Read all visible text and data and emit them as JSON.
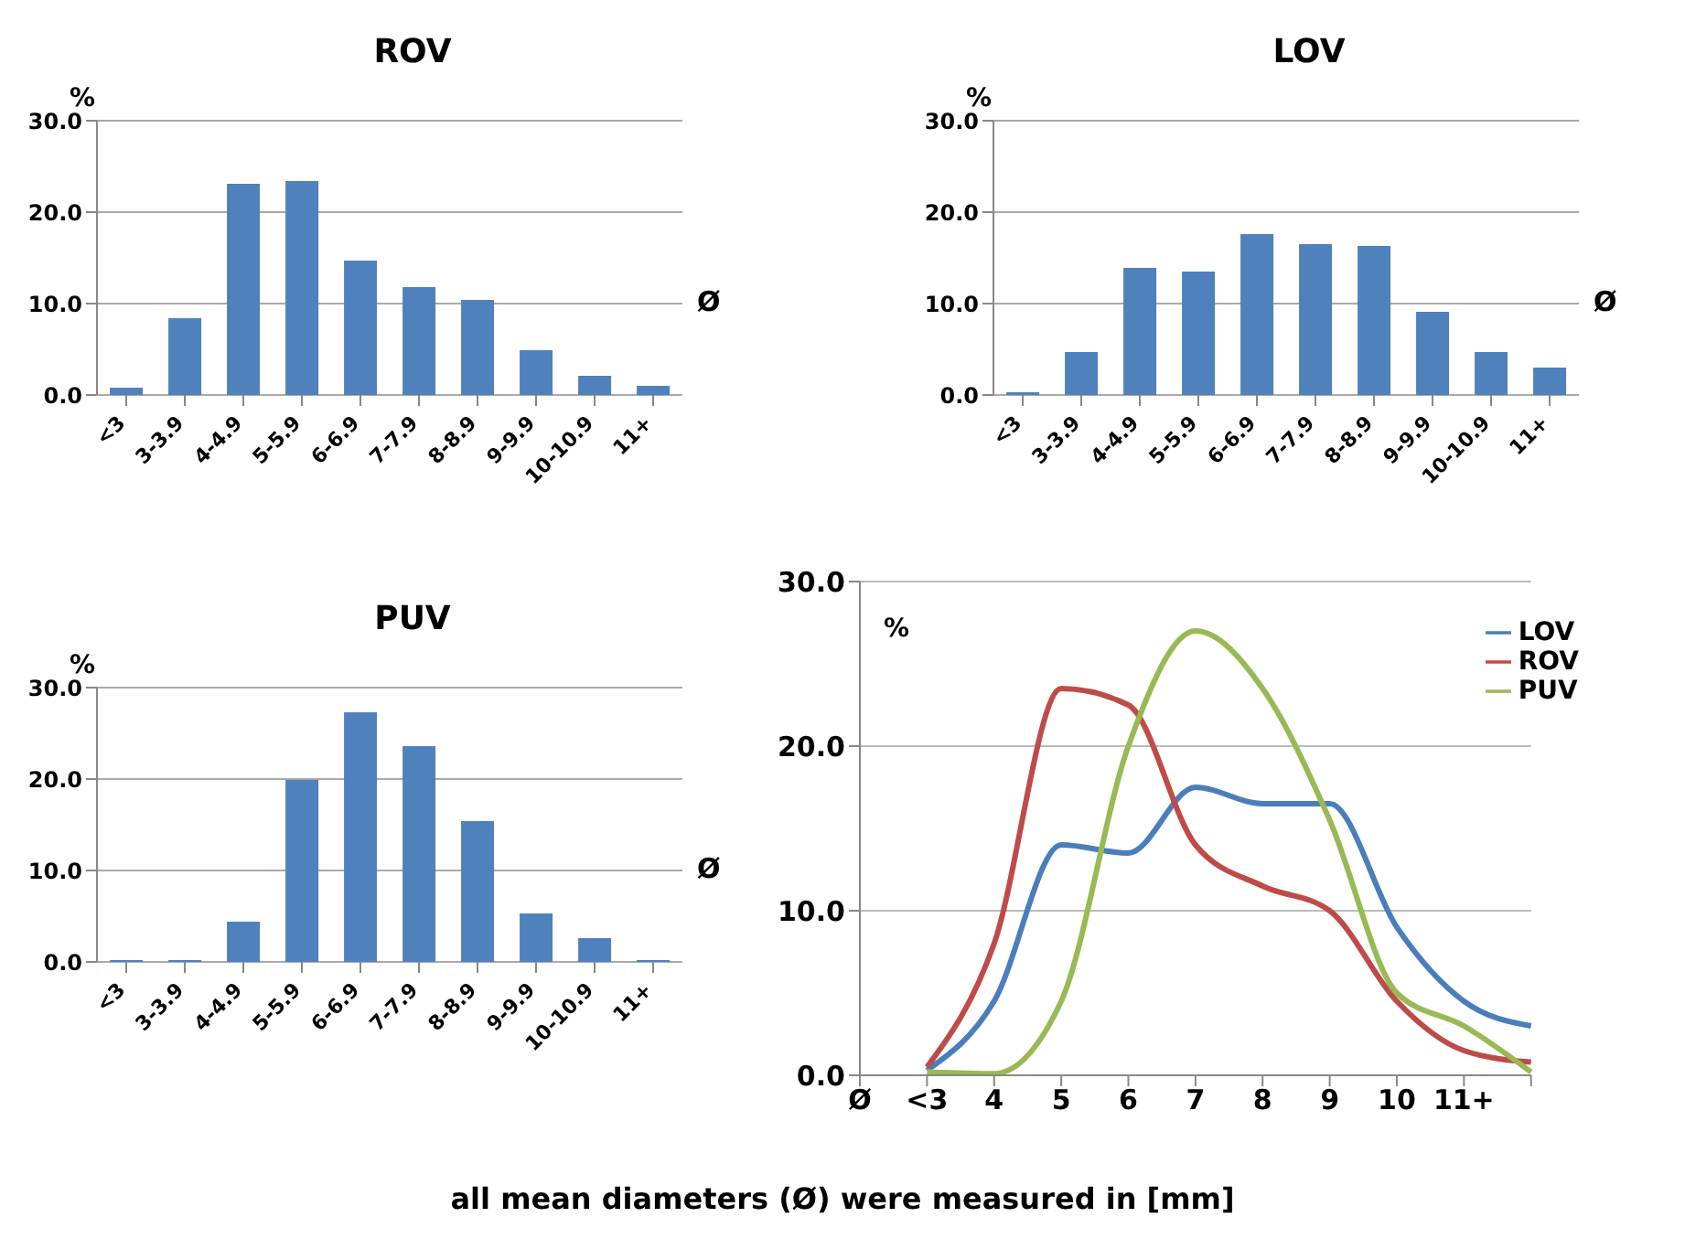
{
  "chart_data": [
    {
      "type": "bar",
      "title": "ROV",
      "ylabel": "%",
      "xlabel": "Ø",
      "categories": [
        "<3",
        "3-3.9",
        "4-4.9",
        "5-5.9",
        "6-6.9",
        "7-7.9",
        "8-8.9",
        "9-9.9",
        "10-10.9",
        "11+"
      ],
      "values": [
        0.8,
        8.4,
        23.1,
        23.4,
        14.7,
        11.8,
        10.4,
        4.9,
        2.1,
        1.0
      ],
      "color": "#4f81bd",
      "ylim": [
        0,
        30
      ],
      "yticks": [
        {
          "value": 0,
          "label": "0.0"
        },
        {
          "value": 10,
          "label": "10.0"
        },
        {
          "value": 20,
          "label": "20.0"
        },
        {
          "value": 30,
          "label": "30.0"
        }
      ],
      "grid": "y"
    },
    {
      "type": "bar",
      "title": "LOV",
      "ylabel": "%",
      "xlabel": "Ø",
      "categories": [
        "<3",
        "3-3.9",
        "4-4.9",
        "5-5.9",
        "6-6.9",
        "7-7.9",
        "8-8.9",
        "9-9.9",
        "10-10.9",
        "11+"
      ],
      "values": [
        0.3,
        4.7,
        13.9,
        13.5,
        17.6,
        16.5,
        16.3,
        9.1,
        4.7,
        3.0
      ],
      "color": "#4f81bd",
      "ylim": [
        0,
        30
      ],
      "yticks": [
        {
          "value": 0,
          "label": "0.0"
        },
        {
          "value": 10,
          "label": "10.0"
        },
        {
          "value": 20,
          "label": "20.0"
        },
        {
          "value": 30,
          "label": "30.0"
        }
      ],
      "grid": "y"
    },
    {
      "type": "bar",
      "title": "PUV",
      "ylabel": "%",
      "xlabel": "Ø",
      "categories": [
        "<3",
        "3-3.9",
        "4-4.9",
        "5-5.9",
        "6-6.9",
        "7-7.9",
        "8-8.9",
        "9-9.9",
        "10-10.9",
        "11+"
      ],
      "values": [
        0.2,
        0.2,
        4.4,
        19.9,
        27.3,
        23.6,
        15.4,
        5.3,
        2.6,
        0.2
      ],
      "color": "#4f81bd",
      "ylim": [
        0,
        30
      ],
      "yticks": [
        {
          "value": 0,
          "label": "0.0"
        },
        {
          "value": 10,
          "label": "10.0"
        },
        {
          "value": 20,
          "label": "20.0"
        },
        {
          "value": 30,
          "label": "30.0"
        }
      ],
      "grid": "y"
    },
    {
      "type": "line",
      "ylabel": "%",
      "categories": [
        "Ø",
        "<3",
        "4",
        "5",
        "6",
        "7",
        "8",
        "9",
        "10",
        "11+",
        null
      ],
      "series": [
        {
          "name": "LOV",
          "color": "#4a7ebb",
          "values": [
            null,
            0.3,
            4.5,
            14.0,
            13.5,
            17.5,
            16.5,
            16.5,
            9.0,
            4.5,
            3.0
          ]
        },
        {
          "name": "ROV",
          "color": "#be4b48",
          "values": [
            null,
            0.5,
            8.0,
            23.5,
            22.5,
            14.0,
            11.5,
            10.0,
            4.5,
            1.5,
            0.8
          ]
        },
        {
          "name": "PUV",
          "color": "#98b954",
          "values": [
            null,
            0.2,
            0.1,
            4.5,
            20.0,
            27.0,
            23.5,
            15.5,
            5.0,
            3.0,
            0.2
          ]
        }
      ],
      "ylim": [
        0,
        30
      ],
      "yticks": [
        {
          "value": 0,
          "label": "0.0"
        },
        {
          "value": 10,
          "label": "10.0"
        },
        {
          "value": 20,
          "label": "20.0"
        },
        {
          "value": 30,
          "label": "30.0"
        }
      ],
      "grid": "y",
      "legend": "top right",
      "annotations": [
        "all mean diameters (Ø) were measured in [mm]"
      ]
    }
  ]
}
